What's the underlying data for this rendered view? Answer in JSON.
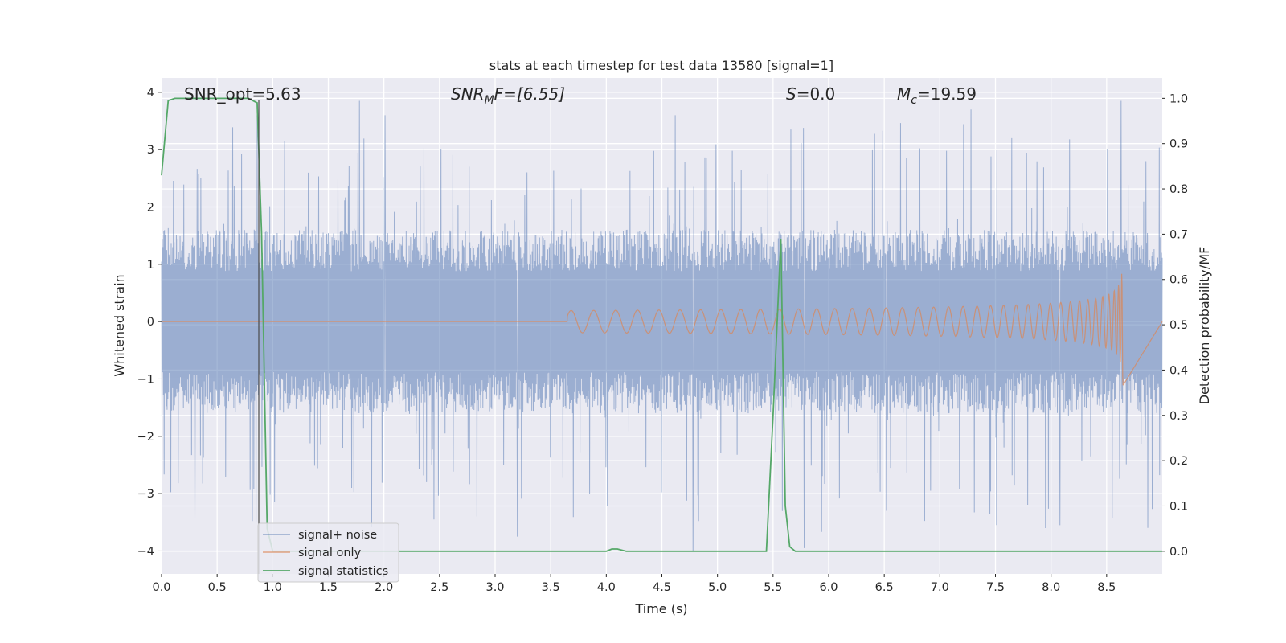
{
  "chart_data": {
    "type": "line",
    "title": "stats at each timestep for test data 13580 [signal=1]",
    "xlabel": "Time (s)",
    "ylabel": "Whitened strain",
    "y2label": "Detection probability/MF",
    "xlim": [
      0.0,
      9.0
    ],
    "ylim": [
      -4.4,
      4.25
    ],
    "y2lim": [
      -0.05,
      1.045
    ],
    "grid": true,
    "legend_position": "lower-left",
    "xticks": [
      "0.0",
      "0.5",
      "1.0",
      "1.5",
      "2.0",
      "2.5",
      "3.0",
      "3.5",
      "4.0",
      "4.5",
      "5.0",
      "5.5",
      "6.0",
      "6.5",
      "7.0",
      "7.5",
      "8.0",
      "8.5"
    ],
    "yticks": [
      "4",
      "3",
      "2",
      "1",
      "0",
      "−1",
      "−2",
      "−3",
      "−4"
    ],
    "y2ticks": [
      "1.0",
      "0.9",
      "0.8",
      "0.7",
      "0.6",
      "0.5",
      "0.4",
      "0.3",
      "0.2",
      "0.1",
      "0.0"
    ],
    "annotations": {
      "snr_opt": "SNR_opt=5.63",
      "snr_mf_base": "SNR",
      "snr_mf_sub": "M",
      "snr_mf_tail": "F=[6.55]",
      "s_val": "=0.0",
      "s_sym": "S",
      "mc_sym": "M",
      "mc_sub": "c",
      "mc_val": "=19.59"
    },
    "series": [
      {
        "name": "signal+ noise",
        "color": "#4c72b0",
        "description": "whitened noisy strain, roughly ±1.6 envelope with spikes up to ±3.8",
        "envelope": 1.6,
        "spikes": [
          [
            0.86,
            3.6
          ],
          [
            0.85,
            -3.5
          ],
          [
            1.78,
            3.85
          ],
          [
            2.45,
            -3.45
          ],
          [
            3.2,
            -3.75
          ],
          [
            4.78,
            -4.0
          ],
          [
            5.78,
            -3.95
          ],
          [
            7.95,
            -3.6
          ],
          [
            8.08,
            -3.55
          ],
          [
            8.63,
            3.85
          ],
          [
            7.28,
            3.7
          ],
          [
            4.62,
            3.6
          ],
          [
            2.01,
            3.6
          ],
          [
            0.3,
            -3.45
          ],
          [
            6.52,
            -3.3
          ]
        ]
      },
      {
        "name": "signal only",
        "color": "#dd8452",
        "description": "chirp signal, amplitude growing toward merger at ~8.65 s",
        "merger_time": 8.65,
        "peak_amplitude": 1.15
      },
      {
        "name": "signal statistics",
        "color": "#55a868",
        "x": [
          0.0,
          0.06,
          0.12,
          0.2,
          0.5,
          0.78,
          0.86,
          0.9,
          0.95,
          1.0,
          1.2,
          2.0,
          3.0,
          4.0,
          4.05,
          4.1,
          4.18,
          4.6,
          5.0,
          5.44,
          5.5,
          5.57,
          5.61,
          5.65,
          5.7,
          6.0,
          7.0,
          8.0,
          9.0
        ],
        "y": [
          0.83,
          0.995,
          1.0,
          1.0,
          1.0,
          1.0,
          0.99,
          0.7,
          0.05,
          0.0,
          0.0,
          0.0,
          0.0,
          0.0,
          0.005,
          0.005,
          0.0,
          0.0,
          0.0,
          0.0,
          0.3,
          0.69,
          0.1,
          0.01,
          0.0,
          0.0,
          0.0,
          0.0,
          0.0
        ]
      }
    ]
  }
}
